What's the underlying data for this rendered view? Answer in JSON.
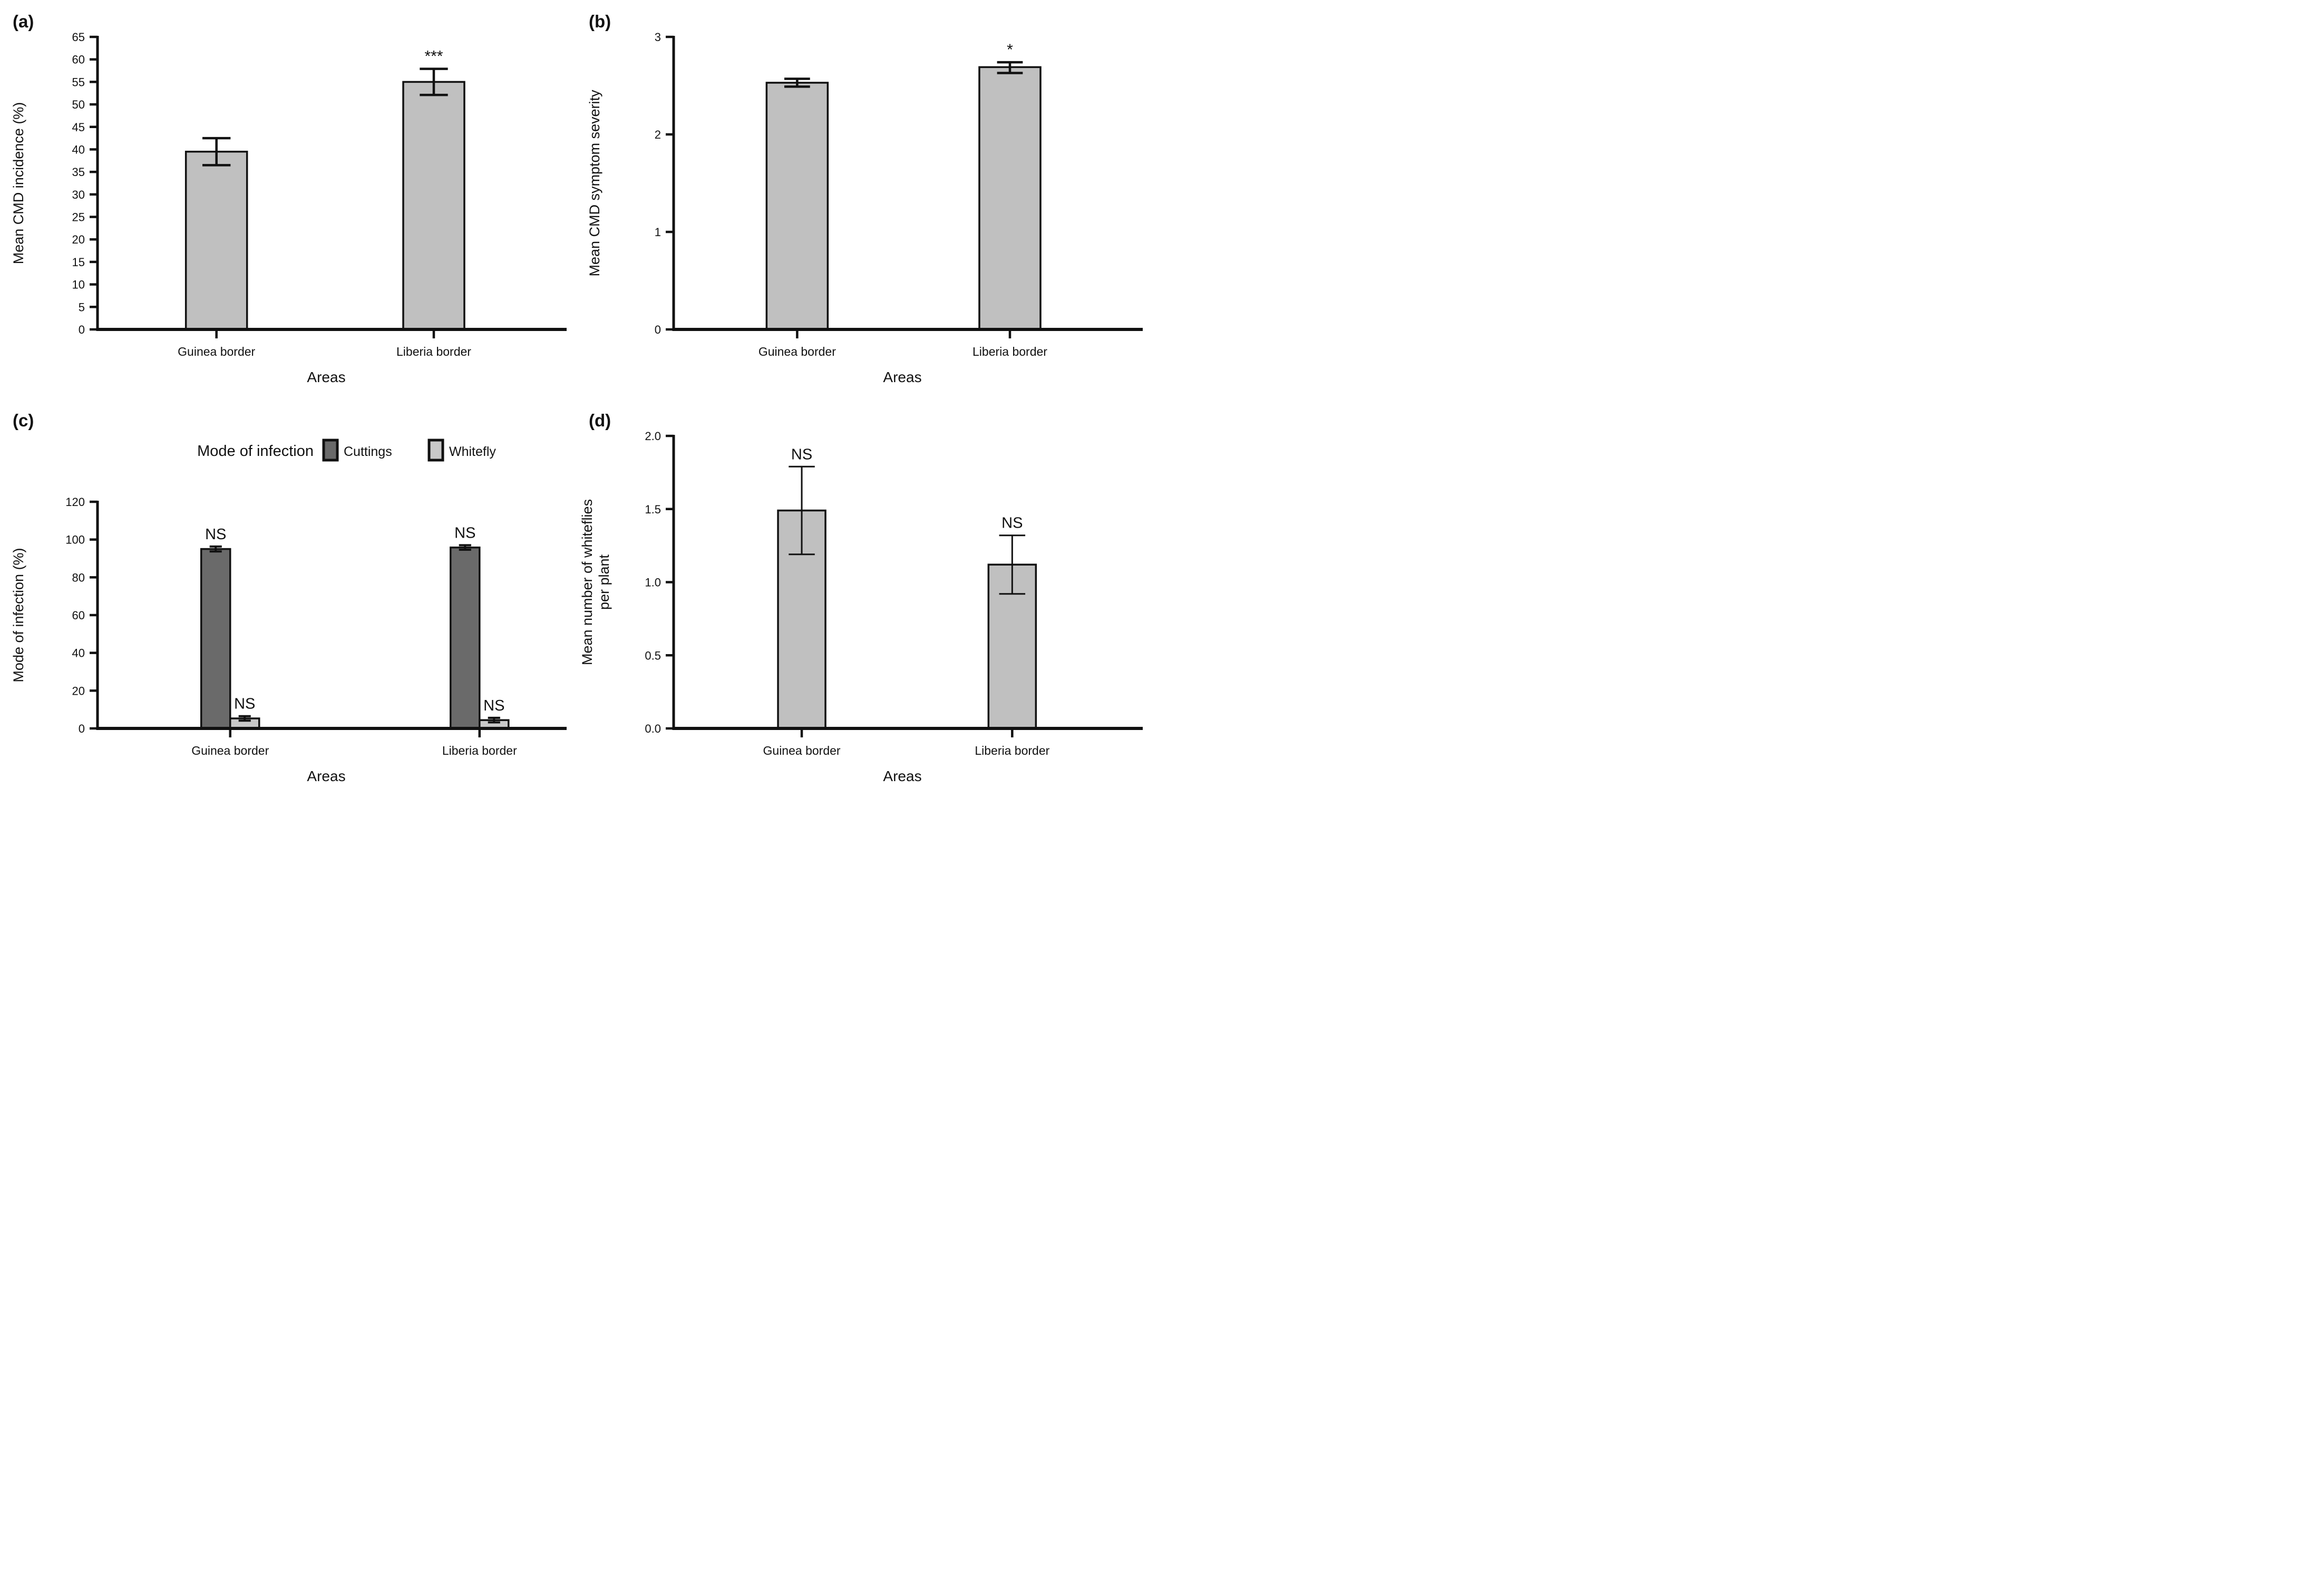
{
  "figure": {
    "background": "#ffffff",
    "axis_color": "#111111",
    "bar_fill_light": "#c0c0c0",
    "bar_fill_dark": "#6a6a6a",
    "panel_tags": [
      "(a)",
      "(b)",
      "(c)",
      "(d)"
    ]
  },
  "chart_data": [
    {
      "id": "a",
      "tag": "(a)",
      "type": "bar",
      "title": "",
      "ylabel": "Mean CMD incidence (%)",
      "ylabel_lines": [
        "Mean CMD incidence (%)"
      ],
      "xlabel": "Areas",
      "ylim": [
        0,
        65
      ],
      "yticks": [
        0,
        5,
        10,
        15,
        20,
        25,
        30,
        35,
        40,
        45,
        50,
        55,
        60,
        65
      ],
      "ytick_labels": [
        "0",
        "5",
        "10",
        "15",
        "20",
        "25",
        "30",
        "35",
        "40",
        "45",
        "50",
        "55",
        "60",
        "65"
      ],
      "categories": [
        "Guinea border",
        "Liberia border"
      ],
      "grid": false,
      "legend": null,
      "series": [
        {
          "name": "",
          "color": "#c0c0c0",
          "values": [
            39.5,
            55.0
          ],
          "err_lo": [
            3.0,
            2.9
          ],
          "err_hi": [
            3.0,
            2.9
          ],
          "sig": [
            "",
            "***"
          ]
        }
      ]
    },
    {
      "id": "b",
      "tag": "(b)",
      "type": "bar",
      "title": "",
      "ylabel": "Mean CMD symptom severity",
      "ylabel_lines": [
        "Mean CMD symptom severity"
      ],
      "xlabel": "Areas",
      "ylim": [
        0,
        3
      ],
      "yticks": [
        0,
        1,
        2,
        3
      ],
      "ytick_labels": [
        "0",
        "1",
        "2",
        "3"
      ],
      "categories": [
        "Guinea border",
        "Liberia border"
      ],
      "grid": false,
      "legend": null,
      "series": [
        {
          "name": "",
          "color": "#c0c0c0",
          "values": [
            2.53,
            2.69
          ],
          "err_lo": [
            0.04,
            0.06
          ],
          "err_hi": [
            0.04,
            0.05
          ],
          "sig": [
            "",
            "*"
          ]
        }
      ]
    },
    {
      "id": "c",
      "tag": "(c)",
      "type": "bar",
      "title": "",
      "ylabel": "Mode of infection (%)",
      "ylabel_lines": [
        "Mode of infection (%)"
      ],
      "xlabel": "Areas",
      "ylim": [
        0,
        120
      ],
      "yticks": [
        0,
        20,
        40,
        60,
        80,
        100,
        120
      ],
      "ytick_labels": [
        "0",
        "20",
        "40",
        "60",
        "80",
        "100",
        "120"
      ],
      "categories": [
        "Guinea border",
        "Liberia border"
      ],
      "grid": false,
      "legend": {
        "title": "Mode of infection",
        "entries": [
          {
            "label": "Cuttings",
            "color": "#6a6a6a"
          },
          {
            "label": "Whitefly",
            "color": "#c9c9c9"
          }
        ]
      },
      "series": [
        {
          "name": "Cuttings",
          "color": "#6a6a6a",
          "values": [
            95.0,
            95.8
          ],
          "err_lo": [
            1.3,
            1.2
          ],
          "err_hi": [
            1.3,
            1.2
          ],
          "sig": [
            "NS",
            "NS"
          ]
        },
        {
          "name": "Whitefly",
          "color": "#c9c9c9",
          "values": [
            5.3,
            4.4
          ],
          "err_lo": [
            1.2,
            1.2
          ],
          "err_hi": [
            1.2,
            1.2
          ],
          "sig": [
            "NS",
            "NS"
          ]
        }
      ]
    },
    {
      "id": "d",
      "tag": "(d)",
      "type": "bar",
      "title": "",
      "ylabel": "Mean number of whiteflies per plant",
      "ylabel_lines": [
        "Mean number of whiteflies",
        "per plant"
      ],
      "xlabel": "Areas",
      "ylim": [
        0,
        2
      ],
      "yticks": [
        0.0,
        0.5,
        1.0,
        1.5,
        2.0
      ],
      "ytick_labels": [
        "0.0",
        "0.5",
        "1.0",
        "1.5",
        "2.0"
      ],
      "categories": [
        "Guinea border",
        "Liberia border"
      ],
      "grid": false,
      "legend": null,
      "series": [
        {
          "name": "",
          "color": "#c0c0c0",
          "values": [
            1.49,
            1.12
          ],
          "err_lo": [
            0.3,
            0.2
          ],
          "err_hi": [
            0.3,
            0.2
          ],
          "sig": [
            "NS",
            "NS"
          ]
        }
      ]
    }
  ]
}
